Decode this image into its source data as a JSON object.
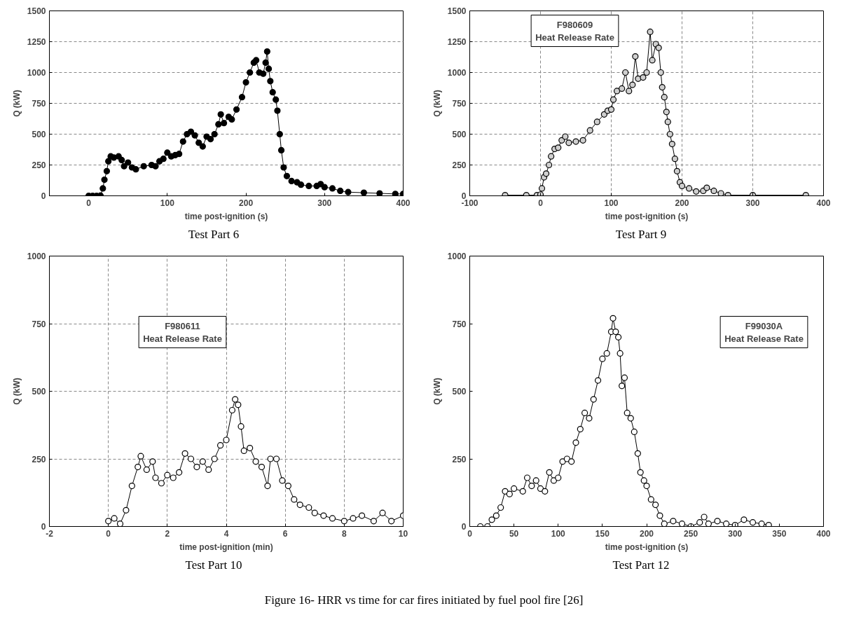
{
  "chart_data": [
    {
      "type": "line",
      "marker": "circle",
      "grid": "y",
      "xlabel": "time post-ignition (s)",
      "ylabel": "Q (kW)",
      "xlim": [
        -50,
        400
      ],
      "xticks": [
        0,
        100,
        200,
        300,
        400
      ],
      "ylim": [
        0,
        1500
      ],
      "yticks": [
        0,
        250,
        500,
        750,
        1000,
        1250,
        1500
      ],
      "annotations": [
        "Test Part 6"
      ],
      "series": [
        {
          "color": "#000000",
          "x": [
            0,
            5,
            10,
            15,
            18,
            20,
            23,
            25,
            28,
            32,
            38,
            42,
            45,
            50,
            55,
            60,
            70,
            80,
            85,
            90,
            95,
            100,
            105,
            110,
            115,
            120,
            125,
            130,
            135,
            140,
            145,
            150,
            155,
            160,
            165,
            168,
            172,
            178,
            182,
            188,
            195,
            200,
            205,
            210,
            213,
            217,
            222,
            225,
            227,
            229,
            231,
            234,
            238,
            240,
            243,
            245,
            248,
            252,
            258,
            265,
            270,
            280,
            290,
            295,
            300,
            310,
            320,
            330,
            350,
            370,
            390,
            400
          ],
          "values": [
            0,
            0,
            0,
            2,
            60,
            130,
            200,
            280,
            320,
            310,
            320,
            290,
            240,
            270,
            230,
            215,
            240,
            250,
            240,
            280,
            300,
            350,
            320,
            330,
            340,
            440,
            500,
            520,
            490,
            430,
            400,
            480,
            460,
            500,
            580,
            660,
            590,
            640,
            620,
            700,
            800,
            920,
            1000,
            1080,
            1100,
            1000,
            990,
            1080,
            1170,
            1030,
            930,
            840,
            780,
            690,
            500,
            370,
            230,
            160,
            120,
            110,
            90,
            80,
            80,
            95,
            70,
            60,
            40,
            30,
            25,
            20,
            15,
            15
          ]
        }
      ]
    },
    {
      "type": "line",
      "marker": "circle",
      "grid": true,
      "title": "F980609\nHeat Release Rate",
      "xlabel": "time post-ignition (s)",
      "ylabel": "Q (kW)",
      "xlim": [
        -100,
        400
      ],
      "xticks": [
        -100,
        0,
        100,
        200,
        300,
        400
      ],
      "ylim": [
        0,
        1500
      ],
      "yticks": [
        0,
        250,
        500,
        750,
        1000,
        1250,
        1500
      ],
      "annotations": [
        "Test Part 9"
      ],
      "series": [
        {
          "color": "#cfcfcf",
          "x": [
            -50,
            -20,
            -5,
            0,
            2,
            5,
            8,
            12,
            15,
            20,
            25,
            30,
            35,
            40,
            50,
            60,
            70,
            80,
            90,
            95,
            100,
            103,
            108,
            115,
            120,
            125,
            130,
            134,
            138,
            145,
            150,
            155,
            158,
            163,
            167,
            170,
            172,
            175,
            178,
            180,
            183,
            186,
            190,
            193,
            197,
            200,
            210,
            220,
            230,
            235,
            245,
            255,
            265,
            300,
            375
          ],
          "values": [
            5,
            5,
            5,
            10,
            60,
            150,
            180,
            250,
            320,
            380,
            390,
            450,
            480,
            430,
            440,
            450,
            530,
            600,
            660,
            690,
            700,
            780,
            850,
            870,
            1000,
            850,
            900,
            1130,
            950,
            960,
            1000,
            1330,
            1100,
            1230,
            1200,
            1000,
            880,
            800,
            680,
            600,
            500,
            420,
            300,
            200,
            110,
            80,
            60,
            35,
            40,
            65,
            40,
            20,
            5,
            5,
            5
          ]
        }
      ]
    },
    {
      "type": "line",
      "marker": "circle",
      "grid": true,
      "title": "F980611\nHeat Release Rate",
      "xlabel": "time post-ignition (min)",
      "ylabel": "Q (kW)",
      "xlim": [
        -2,
        10
      ],
      "xticks": [
        -2,
        0,
        2,
        4,
        6,
        8,
        10
      ],
      "ylim": [
        0,
        1000
      ],
      "yticks": [
        0,
        250,
        500,
        750,
        1000
      ],
      "annotations": [
        "Test Part 10"
      ],
      "series": [
        {
          "color": "#ffffff",
          "x": [
            0,
            0.2,
            0.4,
            0.6,
            0.8,
            1.0,
            1.1,
            1.3,
            1.5,
            1.6,
            1.8,
            2.0,
            2.2,
            2.4,
            2.6,
            2.8,
            3.0,
            3.2,
            3.4,
            3.6,
            3.8,
            4.0,
            4.2,
            4.3,
            4.4,
            4.5,
            4.6,
            4.8,
            5.0,
            5.2,
            5.4,
            5.5,
            5.7,
            5.9,
            6.1,
            6.3,
            6.5,
            6.8,
            7.0,
            7.3,
            7.6,
            8.0,
            8.3,
            8.6,
            9.0,
            9.3,
            9.6,
            10.0
          ],
          "values": [
            20,
            30,
            10,
            60,
            150,
            220,
            260,
            210,
            240,
            180,
            160,
            190,
            180,
            200,
            270,
            250,
            220,
            240,
            210,
            250,
            300,
            320,
            430,
            470,
            450,
            370,
            280,
            290,
            240,
            220,
            150,
            250,
            250,
            170,
            150,
            100,
            80,
            70,
            50,
            40,
            30,
            20,
            30,
            40,
            20,
            50,
            20,
            40
          ]
        }
      ]
    },
    {
      "type": "line",
      "marker": "circle",
      "grid": false,
      "title": "F99030A\nHeat Release Rate",
      "xlabel": "time post-ignition (s)",
      "ylabel": "Q (kW)",
      "xlim": [
        0,
        400
      ],
      "xticks": [
        0,
        50,
        100,
        150,
        200,
        250,
        300,
        350,
        400
      ],
      "ylim": [
        0,
        1000
      ],
      "yticks": [
        0,
        250,
        500,
        750,
        1000
      ],
      "annotations": [
        "Test Part 12",
        "Figure 16- HRR vs time for car fires initiated by fuel pool fire [26]"
      ],
      "series": [
        {
          "color": "#ffffff",
          "x": [
            12,
            20,
            25,
            30,
            35,
            40,
            45,
            50,
            60,
            65,
            70,
            75,
            80,
            85,
            90,
            95,
            100,
            105,
            110,
            115,
            120,
            125,
            130,
            135,
            140,
            145,
            150,
            155,
            160,
            162,
            165,
            168,
            170,
            172,
            175,
            178,
            182,
            186,
            190,
            193,
            197,
            200,
            205,
            210,
            215,
            220,
            230,
            240,
            250,
            260,
            265,
            270,
            280,
            290,
            300,
            310,
            320,
            330,
            338
          ],
          "values": [
            0,
            0,
            25,
            40,
            70,
            130,
            120,
            140,
            130,
            180,
            150,
            170,
            140,
            130,
            200,
            170,
            180,
            240,
            250,
            240,
            310,
            360,
            420,
            400,
            470,
            540,
            620,
            640,
            720,
            770,
            720,
            700,
            640,
            520,
            550,
            420,
            400,
            350,
            270,
            200,
            170,
            150,
            100,
            80,
            40,
            10,
            20,
            10,
            0,
            15,
            35,
            10,
            20,
            10,
            5,
            25,
            15,
            10,
            5
          ]
        }
      ]
    }
  ]
}
